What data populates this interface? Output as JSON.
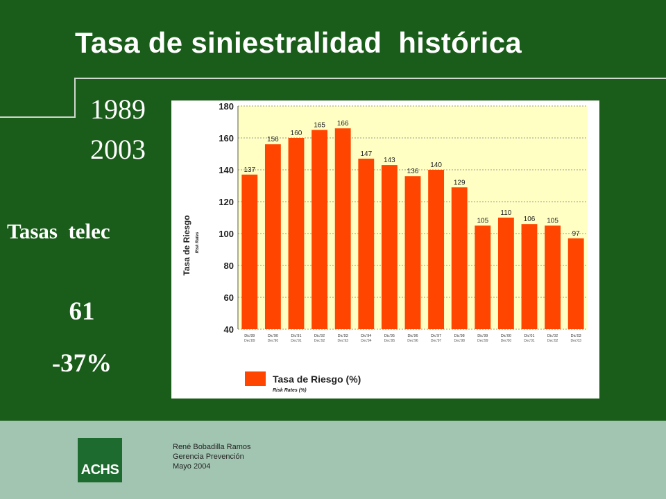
{
  "slide": {
    "title": "Tasa de siniestralidad  histórica",
    "year_start": "1989",
    "year_end": "2003",
    "side_label": "Tasas  telec",
    "side_value": "61",
    "side_change": "-37%"
  },
  "footer": {
    "logo_text": "ACHS",
    "author": "René Bobadilla Ramos",
    "department": "Gerencia Prevención",
    "date": "Mayo 2004"
  },
  "colors": {
    "background": "#1a5c1a",
    "band": "#a2c5b1",
    "bar": "#ff4500",
    "plot_bg": "#ffffc4",
    "logo": "#1d6b2e"
  },
  "chart_data": {
    "type": "bar",
    "title": "",
    "ylabel": "Tasa de Riesgo",
    "ylabel_sub": "Risk Rates",
    "xlabel": "",
    "ylim": [
      40,
      180
    ],
    "yticks": [
      40,
      60,
      80,
      100,
      120,
      140,
      160,
      180
    ],
    "grid": true,
    "legend": "bottom",
    "series": [
      {
        "name": "Tasa de Riesgo (%)",
        "name_sub": "Risk Rates (%)",
        "values": [
          137,
          156,
          160,
          165,
          166,
          147,
          143,
          136,
          140,
          129,
          105,
          110,
          106,
          105,
          97
        ]
      }
    ],
    "categories": [
      "Dic'89",
      "Dic'90",
      "Dic'91",
      "Dic'92",
      "Dic'93",
      "Dic'94",
      "Dic'95",
      "Dic'96",
      "Dic'97",
      "Dic'98",
      "Dic'99",
      "Dic'00",
      "Dic'01",
      "Dic'02",
      "Dic'03"
    ],
    "categories_sub": [
      "Dec'89",
      "Dec'90",
      "Dec'91",
      "Dec'92",
      "Dec'93",
      "Dec'94",
      "Dec'95",
      "Dec'96",
      "Dec'97",
      "Dec'98",
      "Dec'99",
      "Dec'00",
      "Dec'01",
      "Dec'02",
      "Dec'03"
    ]
  }
}
